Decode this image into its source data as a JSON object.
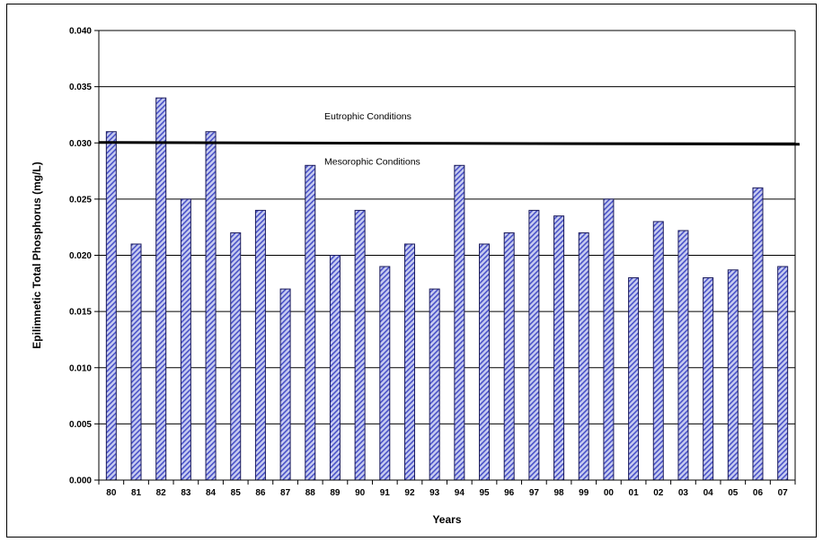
{
  "chart_data": {
    "type": "bar",
    "title": "",
    "xlabel": "Years",
    "ylabel": "Epilimnetic Total Phosphorus (mg/L)",
    "ylim": [
      0,
      0.04
    ],
    "yticks": [
      "0.000",
      "0.005",
      "0.010",
      "0.015",
      "0.020",
      "0.025",
      "0.030",
      "0.035",
      "0.040"
    ],
    "grid": true,
    "categories": [
      "80",
      "81",
      "82",
      "83",
      "84",
      "85",
      "86",
      "87",
      "88",
      "89",
      "90",
      "91",
      "92",
      "93",
      "94",
      "95",
      "96",
      "97",
      "98",
      "99",
      "00",
      "01",
      "02",
      "03",
      "04",
      "05",
      "06",
      "07"
    ],
    "values": [
      0.031,
      0.021,
      0.034,
      0.025,
      0.031,
      0.022,
      0.024,
      0.017,
      0.028,
      0.02,
      0.024,
      0.019,
      0.021,
      0.017,
      0.028,
      0.021,
      0.022,
      0.024,
      0.0235,
      0.022,
      0.025,
      0.018,
      0.023,
      0.0222,
      0.018,
      0.0187,
      0.026,
      0.019
    ],
    "threshold": {
      "value": 0.03
    },
    "annotations": [
      {
        "text": "Eutrophic Conditions",
        "y": 0.0324
      },
      {
        "text": "Mesorophic Conditions",
        "y": 0.0284
      }
    ],
    "colors": {
      "bar_fill": "#c8cdf0",
      "bar_stripe": "#4a52c8",
      "bar_edge": "#1a1a5a"
    }
  }
}
